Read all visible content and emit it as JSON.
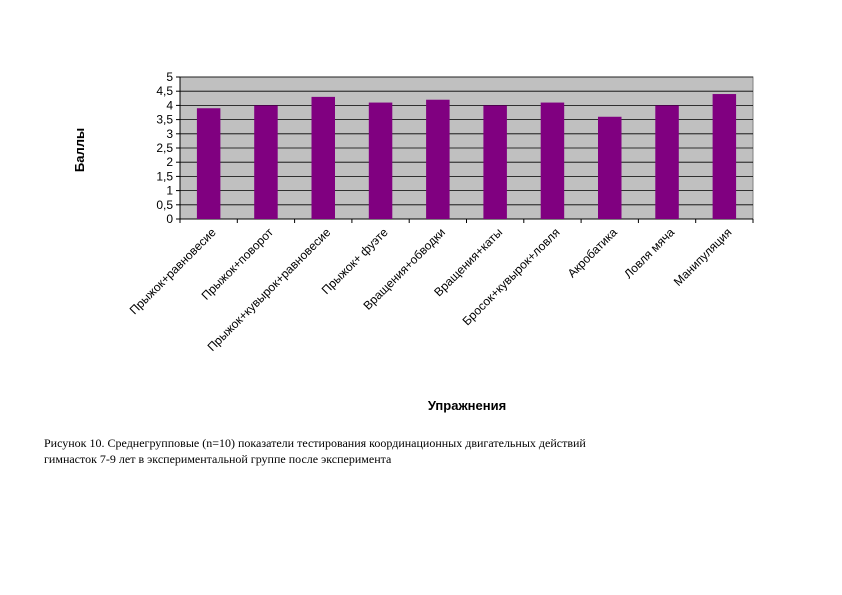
{
  "chart_data": {
    "type": "bar",
    "categories": [
      "Прыжок+равновесие",
      "Прыжок+поворот",
      "Прыжок+кувырок+равновесие",
      "Прыжок+ фуэте",
      "Вращения+обводки",
      "Вращения+каты",
      "Бросок+кувырок+ловля",
      "Акробатика",
      "Ловля мяча",
      "Манипуляция"
    ],
    "values": [
      3.9,
      4.0,
      4.3,
      4.1,
      4.2,
      4.0,
      4.1,
      3.6,
      4.0,
      4.4
    ],
    "ylim": [
      0,
      5
    ],
    "yticks": [
      0,
      0.5,
      1,
      1.5,
      2,
      2.5,
      3,
      3.5,
      4,
      4.5,
      5
    ],
    "ytick_labels": [
      "0",
      "0,5",
      "1",
      "1,5",
      "2",
      "2,5",
      "3",
      "3,5",
      "4",
      "4,5",
      "5"
    ],
    "xlabel": "Упражнения",
    "ylabel": "Баллы",
    "grid": true,
    "bar_color": "#800080",
    "plot_background": "#c0c0c0"
  },
  "caption": {
    "line1": "Рисунок 10. Среднегрупповые (n=10) показатели тестирования координационных двигательных действий",
    "line2": "гимнасток 7-9 лет в экспериментальной группе после эксперимента"
  }
}
